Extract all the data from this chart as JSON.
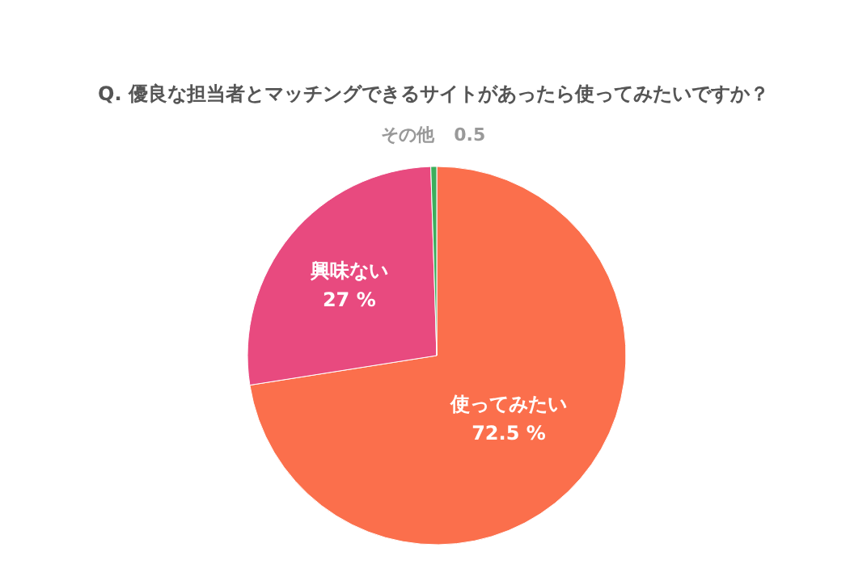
{
  "chart_data": {
    "type": "pie",
    "title": "Q. 優良な担当者とマッチングできるサイトがあったら使ってみたいですか？",
    "categories": [
      "使ってみたい",
      "興味ない",
      "その他"
    ],
    "values": [
      72.5,
      27,
      0.5
    ],
    "value_labels": [
      "72.5 %",
      "27 %",
      "0.5"
    ],
    "colors": [
      "#fb6f4c",
      "#e84a7f",
      "#3cae5c"
    ]
  }
}
